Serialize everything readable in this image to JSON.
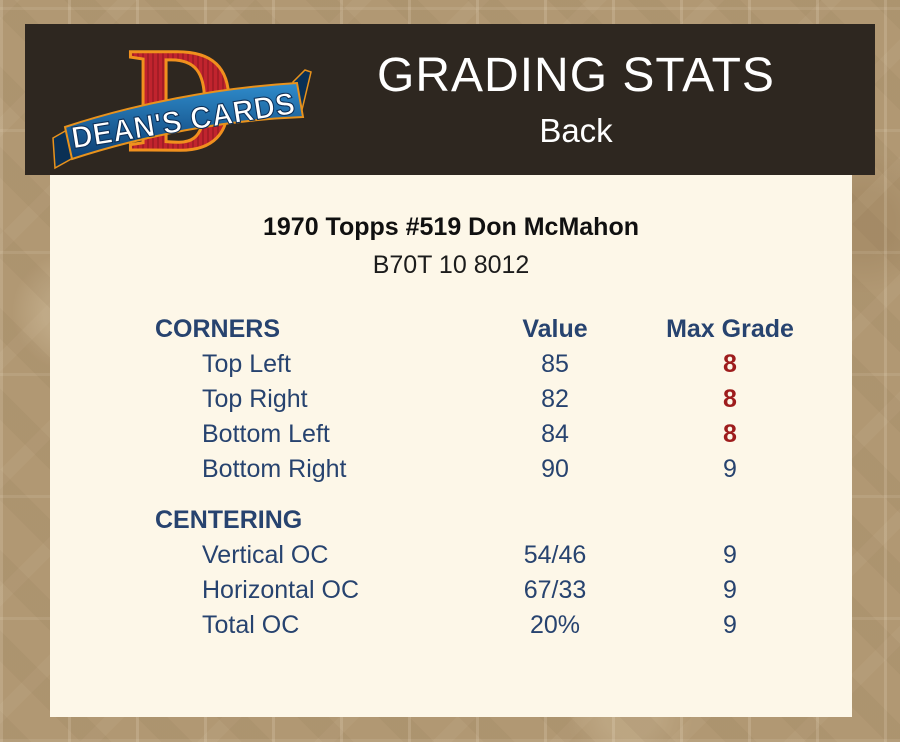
{
  "header": {
    "title": "GRADING STATS",
    "subtitle": "Back",
    "logo": {
      "banner_text": "DEAN'S CARDS",
      "monogram_letter": "D"
    }
  },
  "card": {
    "title": "1970 Topps #519 Don McMahon",
    "code": "B70T 10 8012"
  },
  "table": {
    "columns": {
      "value": "Value",
      "max_grade": "Max Grade"
    },
    "sections": [
      {
        "name": "CORNERS",
        "rows": [
          {
            "label": "Top Left",
            "value": "85",
            "max_grade": "8",
            "grade_highlight": true
          },
          {
            "label": "Top Right",
            "value": "82",
            "max_grade": "8",
            "grade_highlight": true
          },
          {
            "label": "Bottom Left",
            "value": "84",
            "max_grade": "8",
            "grade_highlight": true
          },
          {
            "label": "Bottom Right",
            "value": "90",
            "max_grade": "9",
            "grade_highlight": false
          }
        ]
      },
      {
        "name": "CENTERING",
        "rows": [
          {
            "label": "Vertical OC",
            "value": "54/46",
            "max_grade": "9",
            "grade_highlight": false
          },
          {
            "label": "Horizontal OC",
            "value": "67/33",
            "max_grade": "9",
            "grade_highlight": false
          },
          {
            "label": "Total OC",
            "value": "20%",
            "max_grade": "9",
            "grade_highlight": false
          }
        ]
      }
    ]
  },
  "colors": {
    "page_background": "#b19873",
    "header_background": "#2e2720",
    "panel_background": "#fdf7e8",
    "navy_text": "#27436f",
    "grade_highlight_red": "#9e1c1c",
    "logo_red": "#c1242e",
    "logo_orange": "#f0901e",
    "logo_blue": "#1b6cb0"
  }
}
